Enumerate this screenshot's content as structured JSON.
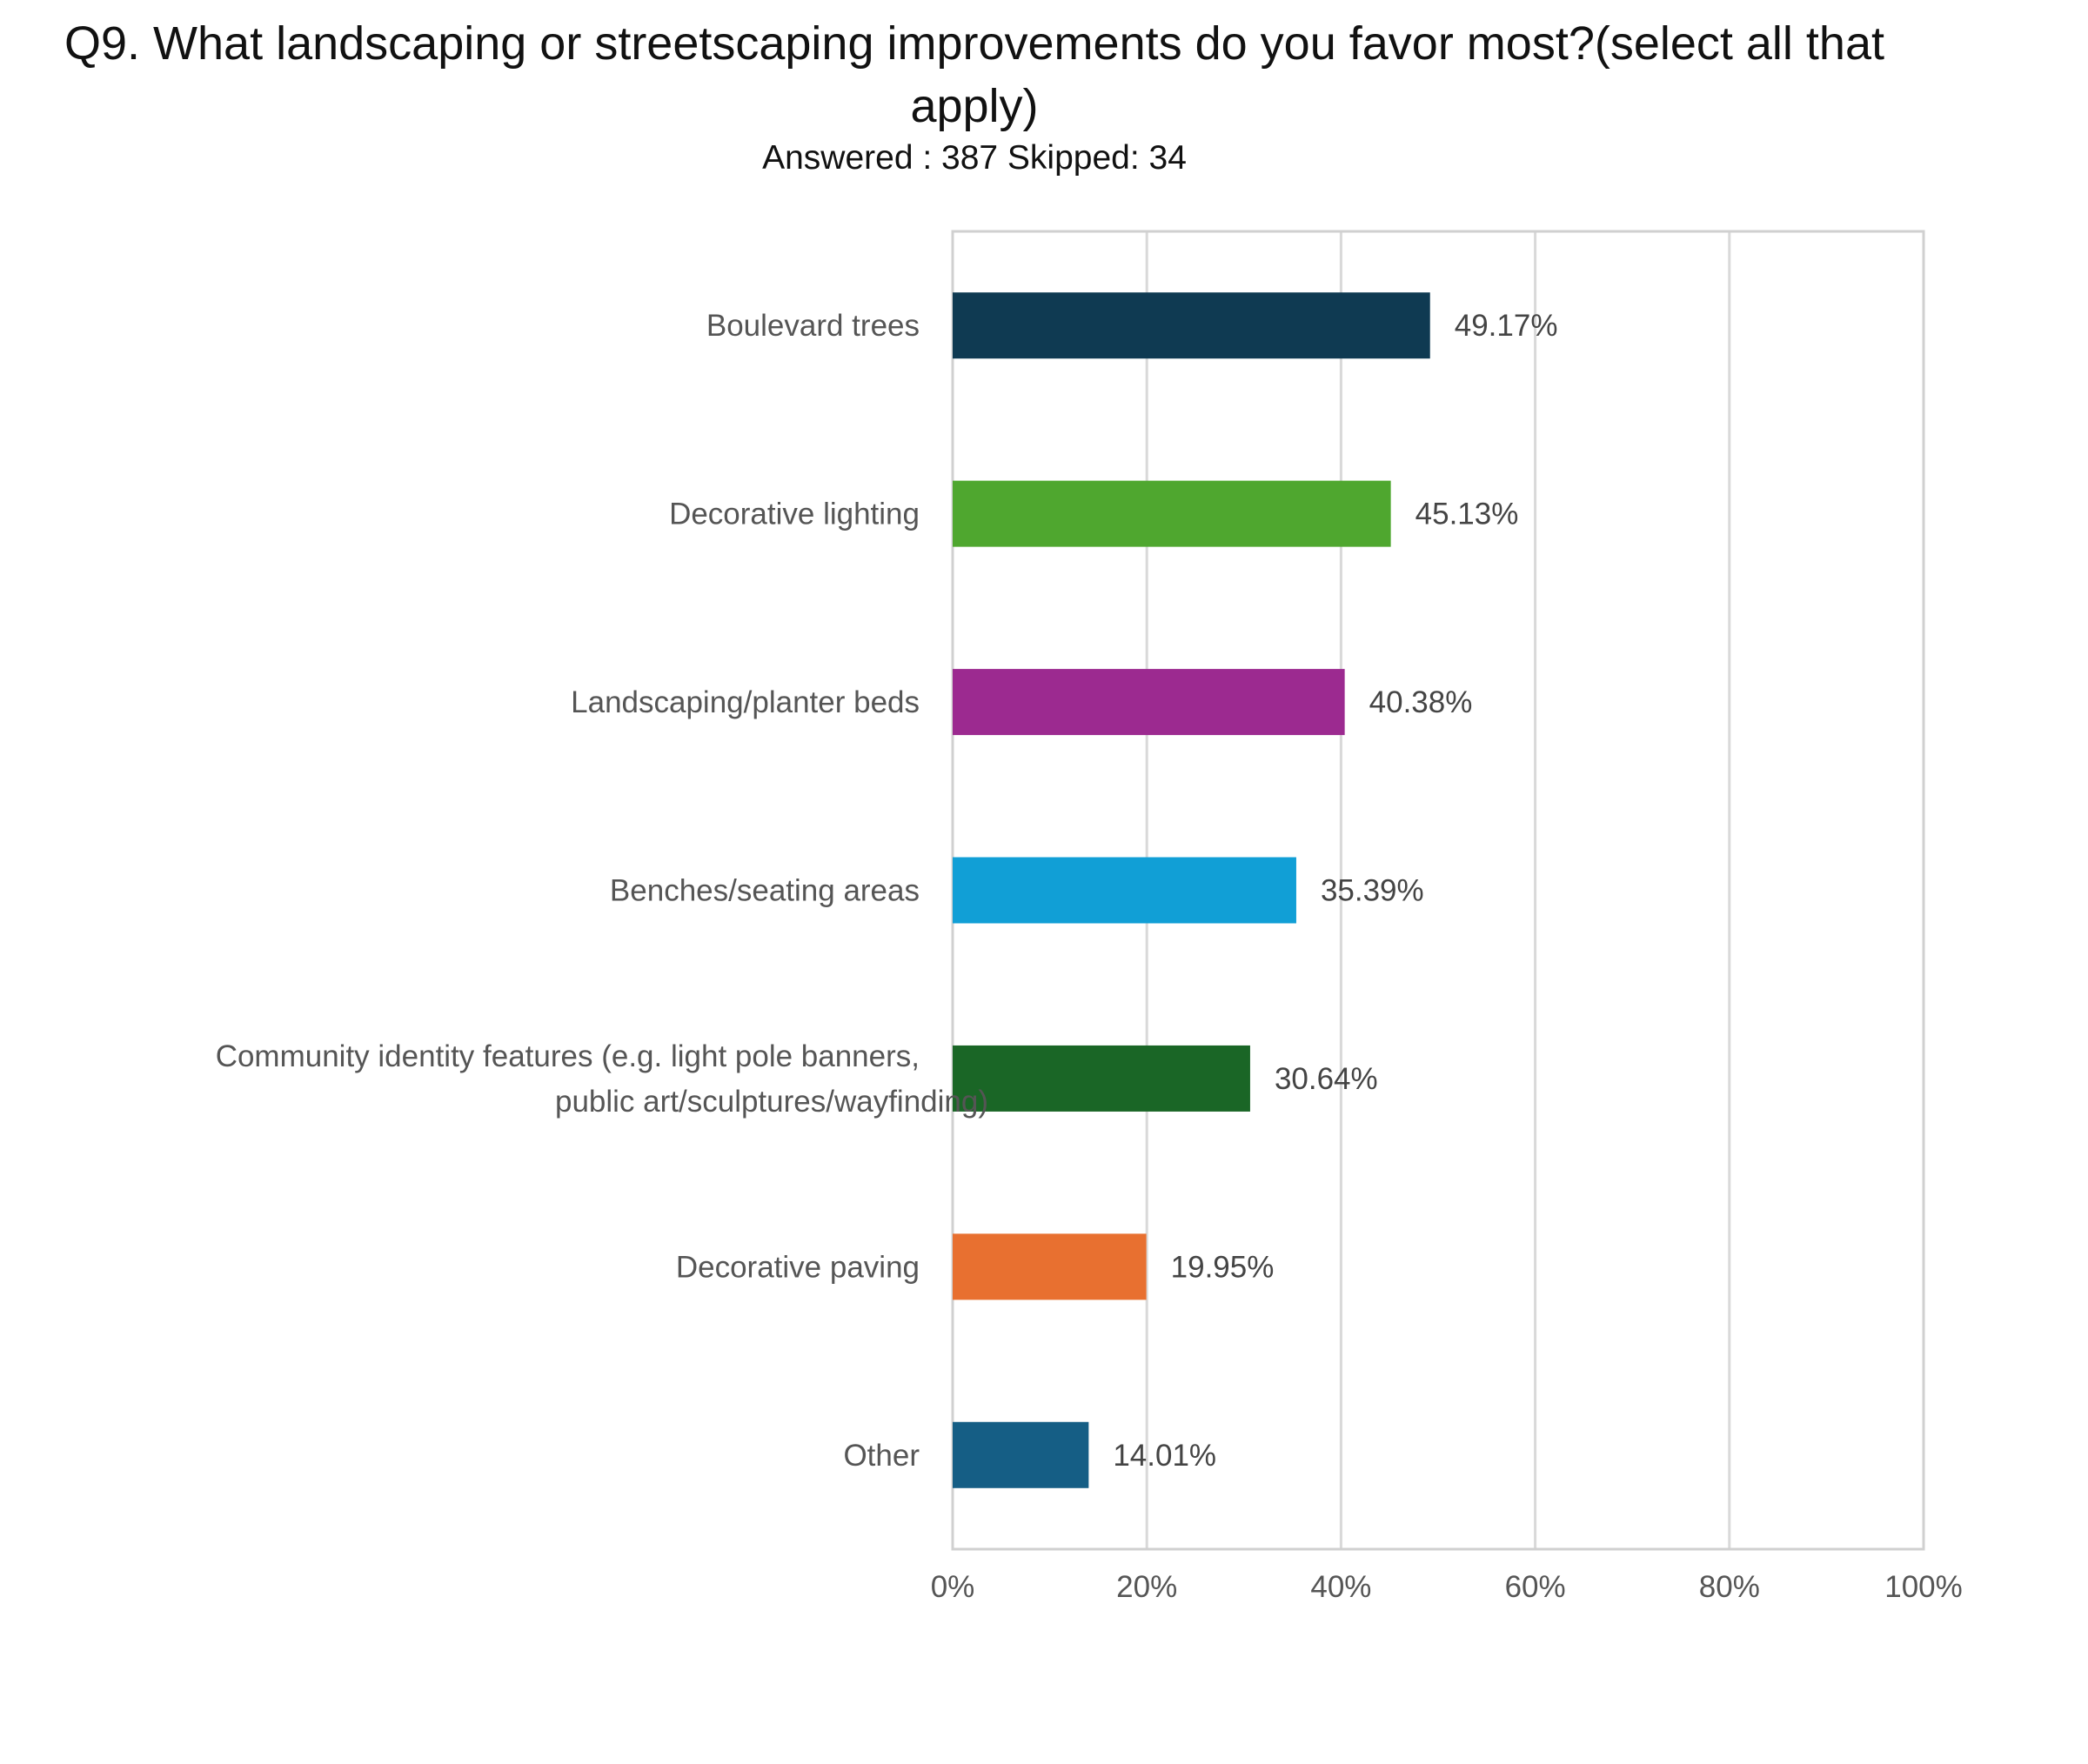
{
  "chart_data": {
    "type": "bar",
    "orientation": "horizontal",
    "title": "Q9. What landscaping or streetscaping improvements do you favor most?(select all that apply)",
    "subtitle": "Answered : 387  Skipped: 34",
    "categories": [
      "Boulevard trees",
      "Decorative lighting",
      "Landscaping/planter beds",
      "Benches/seating areas",
      "Community identity features (e.g. light pole banners,|public art/sculptures/wayfinding)",
      "Decorative paving",
      "Other"
    ],
    "values": [
      49.17,
      45.13,
      40.38,
      35.39,
      30.64,
      19.95,
      14.01
    ],
    "value_labels": [
      "49.17%",
      "45.13%",
      "40.38%",
      "35.39%",
      "30.64%",
      "19.95%",
      "14.01%"
    ],
    "colors": [
      "#0f3a52",
      "#4fa72f",
      "#9c2a90",
      "#119fd6",
      "#1a6626",
      "#e87030",
      "#155e85"
    ],
    "xlim": [
      0,
      100
    ],
    "xticks": [
      "0%",
      "20%",
      "40%",
      "60%",
      "80%",
      "100%"
    ],
    "grid": true,
    "xlabel": "",
    "ylabel": ""
  }
}
